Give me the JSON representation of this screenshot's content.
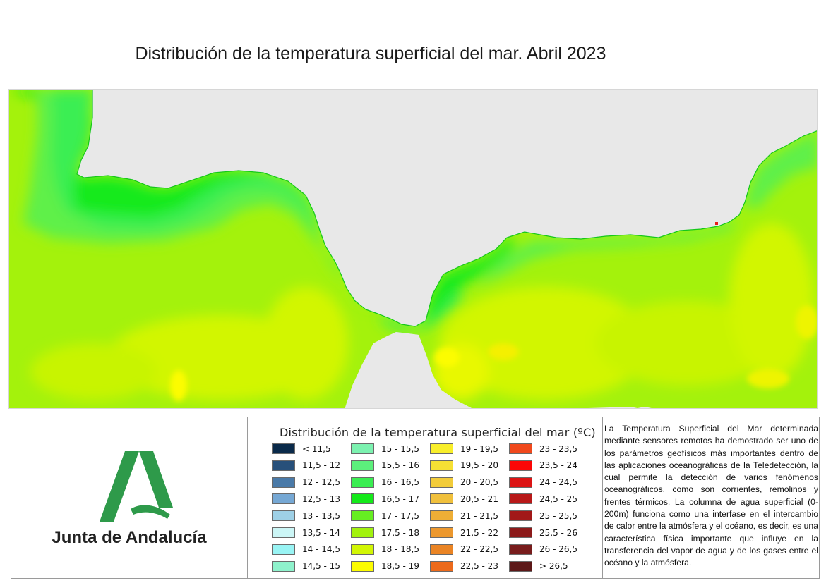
{
  "title": "Distribución de la temperatura superficial del mar. Abril 2023",
  "logo": {
    "text": "Junta de Andalucía"
  },
  "legend": {
    "title": "Distribución de la temperatura superficial del mar (ºC)",
    "items": [
      {
        "label": "< 11,5",
        "color": "#0a2a4a"
      },
      {
        "label": "11,5 - 12",
        "color": "#27507a"
      },
      {
        "label": "12 - 12,5",
        "color": "#4a7aa8"
      },
      {
        "label": "12,5 - 13",
        "color": "#76a8d4"
      },
      {
        "label": "13 - 13,5",
        "color": "#9ed0e6"
      },
      {
        "label": "13,5 - 14",
        "color": "#ccf6f6"
      },
      {
        "label": "14 - 14,5",
        "color": "#99f4f4"
      },
      {
        "label": "14,5 - 15",
        "color": "#8ef2cc"
      },
      {
        "label": "15 - 15,5",
        "color": "#7cf2b0"
      },
      {
        "label": "15,5 - 16",
        "color": "#5cf07c"
      },
      {
        "label": "16 - 16,5",
        "color": "#3aee52"
      },
      {
        "label": "16,5 - 17",
        "color": "#14ea1a"
      },
      {
        "label": "17 - 17,5",
        "color": "#66ee22"
      },
      {
        "label": "17,5 - 18",
        "color": "#a2f20e"
      },
      {
        "label": "18 - 18,5",
        "color": "#d2f604"
      },
      {
        "label": "18,5 - 19",
        "color": "#fcfc00"
      },
      {
        "label": "19 - 19,5",
        "color": "#f8ee2a"
      },
      {
        "label": "19,5 - 20",
        "color": "#f6e034"
      },
      {
        "label": "20 - 20,5",
        "color": "#f2cc3a"
      },
      {
        "label": "20,5 - 21",
        "color": "#f0c03c"
      },
      {
        "label": "21 - 21,5",
        "color": "#eeae36"
      },
      {
        "label": "21,5 - 22",
        "color": "#ec982e"
      },
      {
        "label": "22 - 22,5",
        "color": "#ea8424"
      },
      {
        "label": "22,5 - 23",
        "color": "#ec6a1c"
      },
      {
        "label": "23 - 23,5",
        "color": "#f0481c"
      },
      {
        "label": "23,5 - 24",
        "color": "#fc0606"
      },
      {
        "label": "24 - 24,5",
        "color": "#dc1414"
      },
      {
        "label": "24,5 - 25",
        "color": "#b81818"
      },
      {
        "label": "25 - 25,5",
        "color": "#a21818"
      },
      {
        "label": "25,5 - 26",
        "color": "#8c1a1a"
      },
      {
        "label": "26 - 26,5",
        "color": "#781c1c"
      },
      {
        "label": "> 26,5",
        "color": "#5c1818"
      }
    ]
  },
  "description": "La Temperatura Superficial del Mar determinada mediante sensores remotos ha demostrado ser uno de los parámetros geofísicos más importantes dentro de las aplicaciones oceanográficas de la Teledetección, la cual permite la detección de varios fenómenos oceanográficos, como son corrientes, remolinos y frentes térmicos. La columna de agua superficial (0-200m) funciona como una interfase en el intercambio de calor entre la atmósfera y el océano, es decir, es una característica física importante que influye en la transferencia del vapor de agua y de los gases entre el océano y la atmósfera.",
  "colors": {
    "land": "#e8e8e8",
    "sea_base": "#a4f20c",
    "sea_warm": "#d6f604",
    "sea_cool": "#5ef04a",
    "coastal_cold": "#18ea20",
    "logo_green": "#2e9a4a"
  }
}
